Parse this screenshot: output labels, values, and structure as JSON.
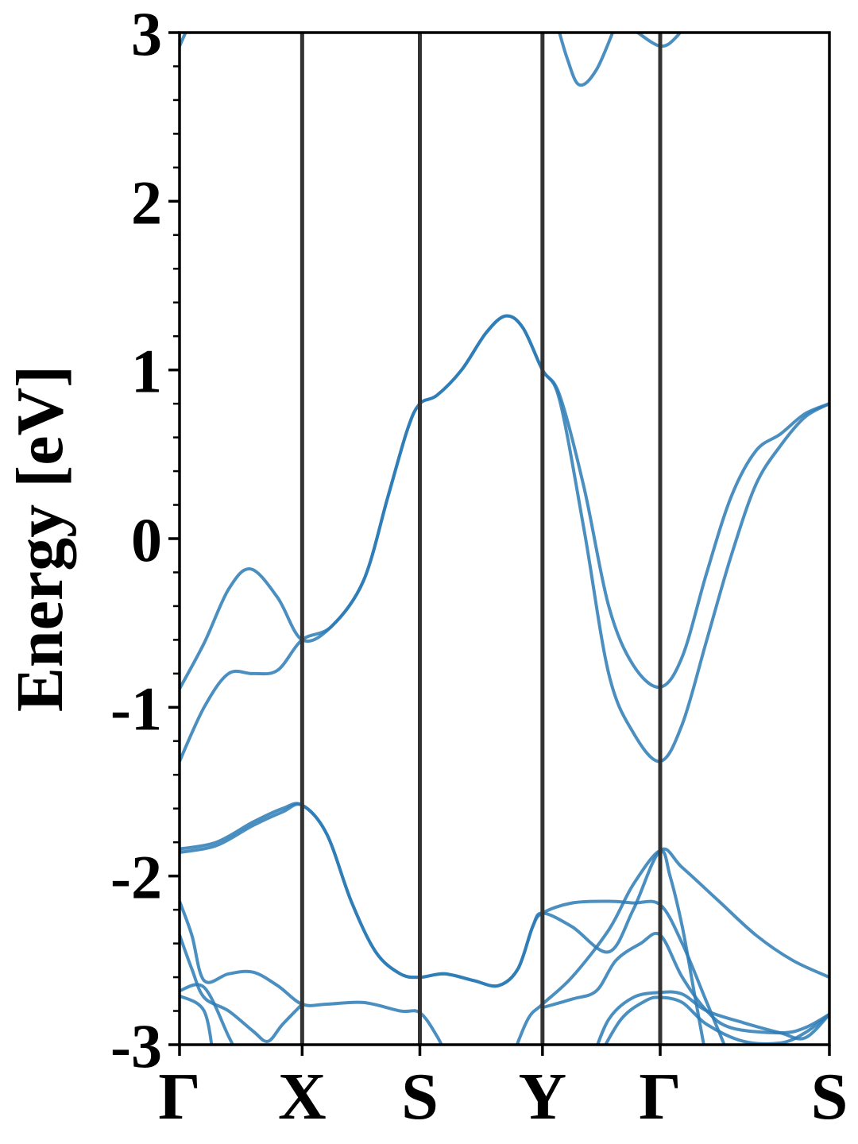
{
  "chart_data": {
    "type": "line",
    "title": "",
    "xlabel": "",
    "ylabel": "Energy [eV]",
    "ylim": [
      -3,
      3
    ],
    "yticks": [
      "-3",
      "-2",
      "-1",
      "0",
      "1",
      "2",
      "3"
    ],
    "yminor_step": 0.2,
    "kpoints": [
      {
        "label": "Γ",
        "x": 0.0
      },
      {
        "label": "X",
        "x": 0.5
      },
      {
        "label": "S",
        "x": 0.98
      },
      {
        "label": "Y",
        "x": 1.48
      },
      {
        "label": "Γ",
        "x": 1.96
      },
      {
        "label": "S",
        "x": 2.65
      }
    ],
    "xlim": [
      0.0,
      2.65
    ],
    "grid": false,
    "colors": {
      "band": "#2c7bb6",
      "kline": "#333333",
      "axis": "#000000"
    },
    "series": [
      {
        "values": [
          [
            0.0,
            -0.89
          ],
          [
            0.1,
            -0.62
          ],
          [
            0.2,
            -0.3
          ],
          [
            0.29,
            -0.18
          ],
          [
            0.4,
            -0.35
          ],
          [
            0.5,
            -0.6
          ],
          [
            0.62,
            -0.52
          ],
          [
            0.75,
            -0.25
          ],
          [
            0.85,
            0.25
          ],
          [
            0.93,
            0.65
          ],
          [
            0.98,
            0.8
          ],
          [
            1.05,
            0.85
          ],
          [
            1.15,
            1.0
          ],
          [
            1.25,
            1.22
          ],
          [
            1.33,
            1.32
          ],
          [
            1.4,
            1.25
          ],
          [
            1.48,
            1.0
          ],
          [
            1.55,
            0.85
          ],
          [
            1.65,
            0.3
          ],
          [
            1.75,
            -0.4
          ],
          [
            1.85,
            -0.75
          ],
          [
            1.96,
            -0.88
          ],
          [
            2.05,
            -0.7
          ],
          [
            2.15,
            -0.2
          ],
          [
            2.25,
            0.25
          ],
          [
            2.35,
            0.52
          ],
          [
            2.45,
            0.62
          ],
          [
            2.55,
            0.74
          ],
          [
            2.65,
            0.8
          ]
        ]
      },
      {
        "values": [
          [
            0.0,
            -1.32
          ],
          [
            0.1,
            -1.0
          ],
          [
            0.2,
            -0.8
          ],
          [
            0.3,
            -0.8
          ],
          [
            0.4,
            -0.78
          ],
          [
            0.5,
            -0.6
          ],
          [
            0.62,
            -0.52
          ],
          [
            0.75,
            -0.25
          ],
          [
            0.85,
            0.25
          ],
          [
            0.93,
            0.65
          ],
          [
            0.98,
            0.8
          ],
          [
            1.05,
            0.85
          ],
          [
            1.15,
            1.0
          ],
          [
            1.25,
            1.22
          ],
          [
            1.33,
            1.32
          ],
          [
            1.4,
            1.25
          ],
          [
            1.48,
            1.0
          ],
          [
            1.55,
            0.82
          ],
          [
            1.65,
            0.05
          ],
          [
            1.75,
            -0.8
          ],
          [
            1.85,
            -1.15
          ],
          [
            1.96,
            -1.32
          ],
          [
            2.05,
            -1.1
          ],
          [
            2.15,
            -0.6
          ],
          [
            2.25,
            -0.1
          ],
          [
            2.35,
            0.32
          ],
          [
            2.45,
            0.55
          ],
          [
            2.55,
            0.72
          ],
          [
            2.65,
            0.8
          ]
        ]
      },
      {
        "values": [
          [
            0.0,
            -1.84
          ],
          [
            0.15,
            -1.8
          ],
          [
            0.3,
            -1.68
          ],
          [
            0.42,
            -1.6
          ],
          [
            0.5,
            -1.58
          ],
          [
            0.6,
            -1.75
          ],
          [
            0.7,
            -2.15
          ],
          [
            0.8,
            -2.45
          ],
          [
            0.9,
            -2.58
          ],
          [
            0.98,
            -2.6
          ],
          [
            1.08,
            -2.58
          ],
          [
            1.2,
            -2.62
          ],
          [
            1.3,
            -2.65
          ],
          [
            1.38,
            -2.55
          ],
          [
            1.44,
            -2.3
          ],
          [
            1.48,
            -2.22
          ],
          [
            1.6,
            -2.3
          ],
          [
            1.75,
            -2.45
          ],
          [
            1.85,
            -2.2
          ],
          [
            1.96,
            -1.85
          ],
          [
            2.05,
            -1.95
          ],
          [
            2.2,
            -2.15
          ],
          [
            2.35,
            -2.35
          ],
          [
            2.5,
            -2.5
          ],
          [
            2.65,
            -2.6
          ]
        ]
      },
      {
        "values": [
          [
            0.0,
            -1.86
          ],
          [
            0.15,
            -1.82
          ],
          [
            0.3,
            -1.7
          ],
          [
            0.42,
            -1.62
          ],
          [
            0.5,
            -1.58
          ],
          [
            0.6,
            -1.75
          ],
          [
            0.7,
            -2.15
          ],
          [
            0.8,
            -2.45
          ],
          [
            0.9,
            -2.58
          ],
          [
            0.98,
            -2.6
          ],
          [
            1.08,
            -2.58
          ],
          [
            1.2,
            -2.62
          ],
          [
            1.3,
            -2.65
          ],
          [
            1.38,
            -2.55
          ],
          [
            1.44,
            -2.3
          ],
          [
            1.48,
            -2.22
          ],
          [
            1.6,
            -2.16
          ],
          [
            1.75,
            -2.15
          ],
          [
            1.85,
            -2.16
          ],
          [
            1.96,
            -2.17
          ],
          [
            2.05,
            -2.4
          ],
          [
            2.15,
            -2.75
          ],
          [
            2.25,
            -3.1
          ]
        ]
      },
      {
        "values": [
          [
            0.0,
            -2.15
          ],
          [
            0.05,
            -2.35
          ],
          [
            0.1,
            -2.62
          ],
          [
            0.2,
            -2.58
          ],
          [
            0.3,
            -2.57
          ],
          [
            0.4,
            -2.65
          ],
          [
            0.5,
            -2.76
          ],
          [
            0.6,
            -2.76
          ],
          [
            0.75,
            -2.75
          ],
          [
            0.9,
            -2.8
          ],
          [
            0.98,
            -2.81
          ],
          [
            1.05,
            -2.95
          ],
          [
            1.1,
            -3.1
          ]
        ]
      },
      {
        "values": [
          [
            0.0,
            -2.35
          ],
          [
            0.05,
            -2.55
          ],
          [
            0.1,
            -2.72
          ],
          [
            0.2,
            -2.8
          ],
          [
            0.3,
            -2.92
          ],
          [
            0.36,
            -2.98
          ],
          [
            0.42,
            -2.88
          ],
          [
            0.5,
            -2.76
          ]
        ]
      },
      {
        "values": [
          [
            0.0,
            -2.68
          ],
          [
            0.1,
            -2.66
          ],
          [
            0.2,
            -2.95
          ],
          [
            0.25,
            -3.1
          ]
        ]
      },
      {
        "values": [
          [
            0.0,
            -2.71
          ],
          [
            0.1,
            -2.8
          ],
          [
            0.14,
            -3.1
          ]
        ]
      },
      {
        "values": [
          [
            1.35,
            -3.1
          ],
          [
            1.42,
            -2.85
          ],
          [
            1.48,
            -2.76
          ],
          [
            1.6,
            -2.6
          ],
          [
            1.75,
            -2.32
          ],
          [
            1.85,
            -2.05
          ],
          [
            1.96,
            -1.85
          ],
          [
            2.0,
            -2.0
          ],
          [
            2.05,
            -2.3
          ],
          [
            2.1,
            -2.7
          ],
          [
            2.15,
            -3.1
          ]
        ]
      },
      {
        "values": [
          [
            1.48,
            -2.78
          ],
          [
            1.6,
            -2.73
          ],
          [
            1.7,
            -2.68
          ],
          [
            1.78,
            -2.5
          ],
          [
            1.88,
            -2.4
          ],
          [
            1.96,
            -2.35
          ],
          [
            2.05,
            -2.6
          ],
          [
            2.15,
            -2.8
          ],
          [
            2.25,
            -2.9
          ],
          [
            2.45,
            -2.93
          ],
          [
            2.55,
            -2.9
          ],
          [
            2.65,
            -2.82
          ]
        ]
      },
      {
        "values": [
          [
            1.68,
            -3.1
          ],
          [
            1.75,
            -2.85
          ],
          [
            1.85,
            -2.72
          ],
          [
            1.96,
            -2.69
          ],
          [
            2.05,
            -2.7
          ],
          [
            2.15,
            -2.8
          ],
          [
            2.3,
            -2.87
          ],
          [
            2.45,
            -2.93
          ],
          [
            2.55,
            -2.96
          ],
          [
            2.65,
            -2.82
          ]
        ]
      },
      {
        "values": [
          [
            1.7,
            -3.1
          ],
          [
            1.8,
            -2.85
          ],
          [
            1.9,
            -2.74
          ],
          [
            1.96,
            -2.72
          ],
          [
            2.05,
            -2.75
          ],
          [
            2.15,
            -2.88
          ],
          [
            2.3,
            -2.98
          ],
          [
            2.45,
            -2.99
          ],
          [
            2.55,
            -2.93
          ],
          [
            2.65,
            -2.82
          ]
        ]
      },
      {
        "values": [
          [
            0.0,
            2.92
          ],
          [
            0.04,
            3.05
          ]
        ]
      },
      {
        "values": [
          [
            1.53,
            3.1
          ],
          [
            1.58,
            2.85
          ],
          [
            1.63,
            2.69
          ],
          [
            1.7,
            2.78
          ],
          [
            1.78,
            3.05
          ]
        ]
      },
      {
        "values": [
          [
            1.85,
            3.02
          ],
          [
            1.96,
            2.92
          ],
          [
            2.03,
            2.98
          ],
          [
            2.08,
            3.1
          ]
        ]
      }
    ]
  }
}
